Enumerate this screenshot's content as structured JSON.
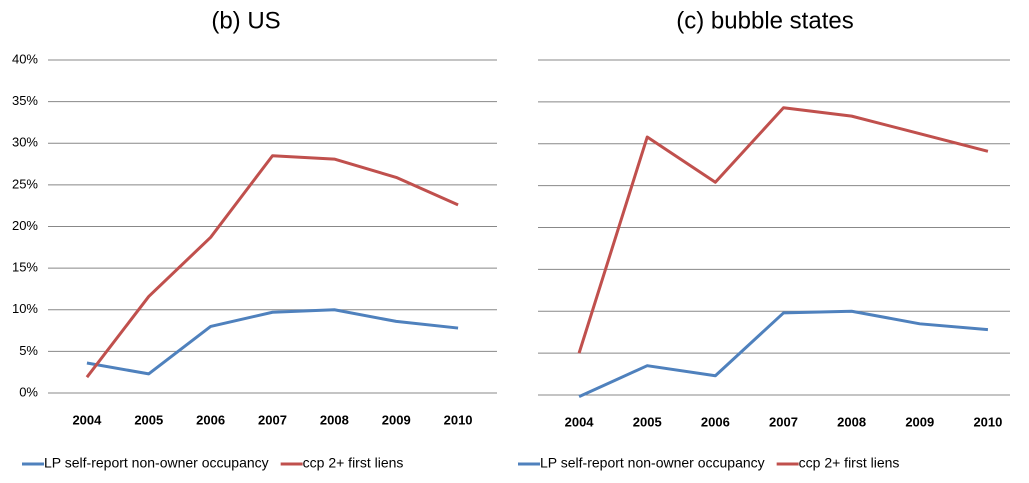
{
  "chart_data": [
    {
      "type": "line",
      "title": "(b)   US",
      "categories": [
        "2004",
        "2005",
        "2006",
        "2007",
        "2008",
        "2009",
        "2010"
      ],
      "series": [
        {
          "name": "LP self-report non-owner occupancy",
          "color": "#4f81bd",
          "values": [
            3.6,
            2.3,
            8.0,
            9.7,
            10.0,
            8.6,
            7.8
          ]
        },
        {
          "name": "ccp 2+ first liens",
          "color": "#c0504d",
          "values": [
            1.9,
            11.6,
            18.7,
            28.5,
            28.1,
            25.9,
            22.6
          ]
        }
      ],
      "ylim": [
        0,
        40
      ],
      "yticks": [
        {
          "value": 0,
          "label": "0%"
        },
        {
          "value": 5,
          "label": "5%"
        },
        {
          "value": 10,
          "label": "10%"
        },
        {
          "value": 15,
          "label": "15%"
        },
        {
          "value": 20,
          "label": "20%"
        },
        {
          "value": 25,
          "label": "25%"
        },
        {
          "value": 30,
          "label": "30%"
        },
        {
          "value": 35,
          "label": "35%"
        },
        {
          "value": 40,
          "label": "40%"
        }
      ],
      "ytick_labels": true,
      "grid": true
    },
    {
      "type": "line",
      "title": "(c)   bubble states",
      "categories": [
        "2004",
        "2005",
        "2006",
        "2007",
        "2008",
        "2009",
        "2010"
      ],
      "series": [
        {
          "name": "LP self-report non-owner occupancy",
          "color": "#4f81bd",
          "values": [
            -0.2,
            3.5,
            2.3,
            9.8,
            10.0,
            8.5,
            7.8
          ]
        },
        {
          "name": "ccp 2+ first liens",
          "color": "#c0504d",
          "values": [
            5.0,
            30.8,
            25.4,
            34.3,
            33.3,
            31.2,
            29.1
          ]
        }
      ],
      "ylim": [
        0,
        40
      ],
      "yticks": [
        0,
        5,
        10,
        15,
        20,
        25,
        30,
        35,
        40
      ],
      "ytick_labels": false,
      "grid": true
    }
  ]
}
